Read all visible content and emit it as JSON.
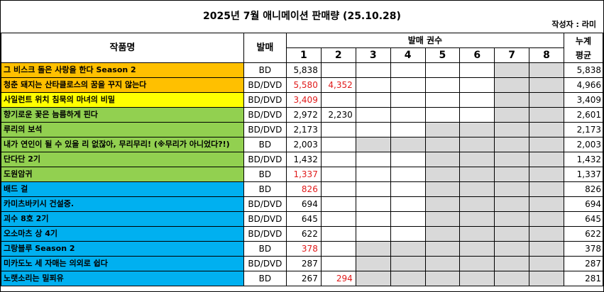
{
  "title": "2025년 7월 애니메이션 판매량 (25.10.28)",
  "author": "작성자 : 라미",
  "headers": {
    "name": "작품명",
    "format": "발매",
    "volumes_group": "발매 권수",
    "volumes": [
      "1",
      "2",
      "3",
      "4",
      "5",
      "6",
      "7",
      "8"
    ],
    "avg_line1": "누계",
    "avg_line2": "평균"
  },
  "colors": {
    "orange": "#ffc000",
    "yellow": "#ffff00",
    "green": "#92d050",
    "blue": "#00b0f0",
    "red_text": "#e01a1a",
    "disabled": "#d9d9d9"
  },
  "rows": [
    {
      "name": "그 비스크 돌은 사랑을 한다 Season 2",
      "format": "BD",
      "color": "orange",
      "values": [
        "5,838",
        "",
        "",
        "",
        "",
        "",
        "",
        ""
      ],
      "red": [],
      "total_volumes": 6,
      "avg": "5,838"
    },
    {
      "name": "청춘 돼지는 산타클로스의 꿈을 꾸지 않는다",
      "format": "BD/DVD",
      "color": "orange",
      "values": [
        "5,580",
        "4,352",
        "",
        "",
        "",
        "",
        "",
        ""
      ],
      "red": [
        0,
        1
      ],
      "total_volumes": 6,
      "avg": "4,966"
    },
    {
      "name": "사일런트 위치 침묵의 마녀의 비밀",
      "format": "BD/DVD",
      "color": "yellow",
      "values": [
        "3,409",
        "",
        "",
        "",
        "",
        "",
        "",
        ""
      ],
      "red": [
        0
      ],
      "total_volumes": 6,
      "avg": "3,409"
    },
    {
      "name": "향기로운 꽃은 늠름하게 핀다",
      "format": "BD/DVD",
      "color": "green",
      "values": [
        "2,972",
        "2,230",
        "",
        "",
        "",
        "",
        "",
        ""
      ],
      "red": [],
      "total_volumes": 6,
      "avg": "2,601"
    },
    {
      "name": "루리의 보석",
      "format": "BD/DVD",
      "color": "green",
      "values": [
        "2,173",
        "",
        "",
        "",
        "",
        "",
        "",
        ""
      ],
      "red": [],
      "total_volumes": 4,
      "avg": "2,173"
    },
    {
      "name": "내가 연인이 될 수 있을 리 없잖아, 무리무리! (※무리가 아니었다?!)",
      "format": "BD",
      "color": "green",
      "values": [
        "2,003",
        "",
        "",
        "",
        "",
        "",
        "",
        ""
      ],
      "red": [],
      "total_volumes": 2,
      "avg": "2,003"
    },
    {
      "name": "단다단 2기",
      "format": "BD/DVD",
      "color": "green",
      "values": [
        "1,432",
        "",
        "",
        "",
        "",
        "",
        "",
        ""
      ],
      "red": [],
      "total_volumes": 4,
      "avg": "1,432"
    },
    {
      "name": "도원암귀",
      "format": "BD",
      "color": "green",
      "values": [
        "1,337",
        "",
        "",
        "",
        "",
        "",
        "",
        ""
      ],
      "red": [
        0
      ],
      "total_volumes": 4,
      "avg": "1,337"
    },
    {
      "name": "배드 걸",
      "format": "BD",
      "color": "blue",
      "values": [
        "826",
        "",
        "",
        "",
        "",
        "",
        "",
        ""
      ],
      "red": [
        0
      ],
      "total_volumes": 4,
      "avg": "826"
    },
    {
      "name": "카미츠바키시 건설중.",
      "format": "BD/DVD",
      "color": "blue",
      "values": [
        "694",
        "",
        "",
        "",
        "",
        "",
        "",
        ""
      ],
      "red": [],
      "total_volumes": 4,
      "avg": "694"
    },
    {
      "name": "괴수 8호 2기",
      "format": "BD/DVD",
      "color": "blue",
      "values": [
        "645",
        "",
        "",
        "",
        "",
        "",
        "",
        ""
      ],
      "red": [],
      "total_volumes": 4,
      "avg": "645"
    },
    {
      "name": "오소마츠 상 4기",
      "format": "BD/DVD",
      "color": "blue",
      "values": [
        "622",
        "",
        "",
        "",
        "",
        "",
        "",
        ""
      ],
      "red": [],
      "total_volumes": 4,
      "avg": "622"
    },
    {
      "name": "그랑블루 Season 2",
      "format": "BD",
      "color": "blue",
      "values": [
        "378",
        "",
        "",
        "",
        "",
        "",
        "",
        ""
      ],
      "red": [
        0
      ],
      "total_volumes": 2,
      "avg": "378"
    },
    {
      "name": "미카도노 세 자매는 의외로 쉽다",
      "format": "BD/DVD",
      "color": "blue",
      "values": [
        "287",
        "",
        "",
        "",
        "",
        "",
        "",
        ""
      ],
      "red": [],
      "total_volumes": 2,
      "avg": "287"
    },
    {
      "name": "노랫소리는 밀푀유",
      "format": "BD",
      "color": "blue",
      "values": [
        "267",
        "294",
        "",
        "",
        "",
        "",
        "",
        ""
      ],
      "red": [
        1
      ],
      "total_volumes": 2,
      "avg": "281"
    }
  ]
}
